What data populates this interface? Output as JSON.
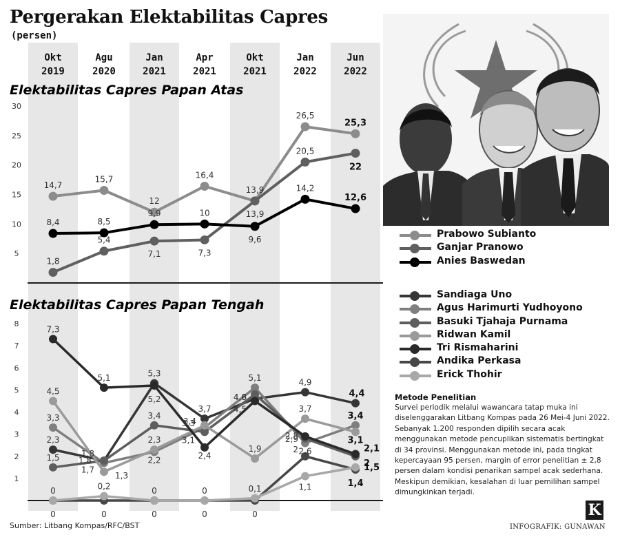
{
  "header": {
    "title": "Pergerakan Elektabilitas Capres",
    "subtitle": "(persen)"
  },
  "periods": [
    {
      "month": "Okt",
      "year": "2019"
    },
    {
      "month": "Agu",
      "year": "2020"
    },
    {
      "month": "Jan",
      "year": "2021"
    },
    {
      "month": "Apr",
      "year": "2021"
    },
    {
      "month": "Okt",
      "year": "2021"
    },
    {
      "month": "Jan",
      "year": "2022"
    },
    {
      "month": "Jun",
      "year": "2022"
    }
  ],
  "colors": {
    "prabowo": "#8c8c8c",
    "ganjar": "#5f5f5f",
    "anies": "#000000",
    "shade": "#e7e7e7",
    "divider": "#1a1a1a"
  },
  "chart_data": [
    {
      "type": "line",
      "title": "Elektabilitas Capres Papan Atas",
      "x": [
        "Okt 2019",
        "Agu 2020",
        "Jan 2021",
        "Apr 2021",
        "Okt 2021",
        "Jan 2022",
        "Jun 2022"
      ],
      "ylim": [
        0,
        30
      ],
      "yticks": [
        5,
        10,
        15,
        20,
        25,
        30
      ],
      "grid": false,
      "series": [
        {
          "name": "Prabowo Subianto",
          "color": "#8c8c8c",
          "values": [
            14.7,
            15.7,
            12,
            16.4,
            13.9,
            26.5,
            25.3
          ],
          "labels": [
            "14,7",
            "15,7",
            "12",
            "16,4",
            "13,9",
            "26,5",
            "25,3"
          ]
        },
        {
          "name": "Ganjar Pranowo",
          "color": "#5f5f5f",
          "values": [
            1.8,
            5.4,
            7.1,
            7.3,
            13.9,
            20.5,
            22
          ],
          "labels": [
            "1,8",
            "5,4",
            "7,1",
            "7,3",
            "13,9",
            "20,5",
            "22"
          ]
        },
        {
          "name": "Anies Baswedan",
          "color": "#000000",
          "values": [
            8.4,
            8.5,
            9.9,
            10,
            9.6,
            14.2,
            12.6
          ],
          "labels": [
            "8,4",
            "8,5",
            "9,9",
            "10",
            "9,6",
            "14,2",
            "12,6"
          ]
        }
      ]
    },
    {
      "type": "line",
      "title": "Elektabilitas Capres Papan Tengah",
      "x": [
        "Okt 2019",
        "Agu 2020",
        "Jan 2021",
        "Apr 2021",
        "Okt 2021",
        "Jan 2022",
        "Jun 2022"
      ],
      "ylim": [
        0,
        8
      ],
      "yticks": [
        1,
        2,
        3,
        4,
        5,
        6,
        7,
        8
      ],
      "grid": false,
      "series": [
        {
          "name": "Sandiaga Uno",
          "color": "#363636",
          "values": [
            2.3,
            1.8,
            5.3,
            3.7,
            4.6,
            4.9,
            4.4
          ],
          "labels": [
            "2,3",
            "1,8",
            "5,3",
            "3,7",
            "4,6",
            "4,9",
            "4,4"
          ]
        },
        {
          "name": "Agus Harimurti Yudhoyono",
          "color": "#7f7f7f",
          "values": [
            3.3,
            1.7,
            2.2,
            3.3,
            5.1,
            2.6,
            3.4
          ],
          "labels": [
            "3,3",
            "1,7",
            "2,2",
            "3,3",
            "5,1",
            "2,6",
            "3,4"
          ]
        },
        {
          "name": "Basuki Tjahaja Purnama",
          "color": "#5e5e5e",
          "values": [
            1.5,
            1.8,
            3.4,
            3.1,
            4.8,
            2.8,
            2
          ],
          "labels": [
            "1,5",
            "1,8",
            "3,4",
            "3,1",
            "4,8",
            "2,8",
            "2"
          ]
        },
        {
          "name": "Ridwan Kamil",
          "color": "#9a9a9a",
          "values": [
            4.5,
            1.3,
            2.3,
            3.4,
            1.9,
            3.7,
            3.1
          ],
          "labels": [
            "4,5",
            "1,3",
            "2,3",
            "3,4",
            "1,9",
            "3,7",
            "3,1"
          ]
        },
        {
          "name": "Tri Rismaharini",
          "color": "#2a2a2a",
          "values": [
            7.3,
            5.1,
            5.2,
            2.4,
            4.5,
            2.9,
            2.1
          ],
          "labels": [
            "7,3",
            "5,1",
            "5,2",
            "2,4",
            "4,5",
            "2,9",
            "2,1"
          ]
        },
        {
          "name": "Andika Perkasa",
          "color": "#474747",
          "values": [
            0,
            0,
            0,
            0,
            0,
            2,
            1.4
          ],
          "labels": [
            "0",
            "0",
            "0",
            "0",
            "0",
            "2",
            "1,4"
          ]
        },
        {
          "name": "Erick Thohir",
          "color": "#a8a8a8",
          "values": [
            0,
            0.2,
            0,
            0,
            0.1,
            1.1,
            1.5
          ],
          "labels": [
            "0",
            "0,2",
            "0",
            "0",
            "0,1",
            "1,1",
            "1,5"
          ]
        }
      ]
    }
  ],
  "legend_top": [
    "Prabowo Subianto",
    "Ganjar Pranowo",
    "Anies Baswedan"
  ],
  "legend_bottom": [
    "Sandiaga Uno",
    "Agus Harimurti Yudhoyono",
    "Basuki Tjahaja Purnama",
    "Ridwan Kamil",
    "Tri Rismaharini",
    "Andika Perkasa",
    "Erick Thohir"
  ],
  "methodology": {
    "title": "Metode Penelitian",
    "text": "Survei periodik melalui wawancara tatap muka ini diselenggarakan Litbang Kompas pada 26 Mei-4 Juni 2022. Sebanyak 1.200 responden dipilih secara acak menggunakan metode pencuplikan sistematis bertingkat di 34 provinsi. Menggunakan metode ini, pada tingkat kepercayaan 95 persen, margin of error penelitian ± 2,8 persen dalam kondisi penarikan sampel acak sederhana. Meskipun demikian, kesalahan di luar pemilihan sampel dimungkinkan terjadi."
  },
  "footer": {
    "source": "Sumber: Litbang Kompas/RFC/BST",
    "credit": "INFOGRAFIK: GUNAWAN",
    "logo": "K"
  },
  "illustration": {
    "icon": "candidate-portraits-illustration"
  }
}
